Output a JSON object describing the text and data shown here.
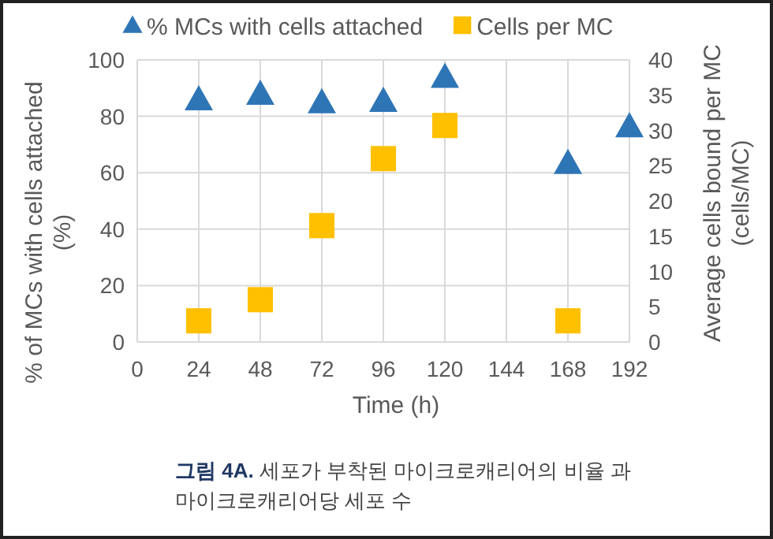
{
  "chart_data": {
    "type": "scatter",
    "xlabel": "Time (h)",
    "ylabel": "% of  MCs with cells attached (%)",
    "y2label": "Average cells bound per MC (cells/MC)",
    "xlim": [
      0,
      192
    ],
    "xticks": [
      0,
      24,
      48,
      72,
      96,
      120,
      144,
      168,
      192
    ],
    "ylim": [
      0,
      100
    ],
    "yticks": [
      0,
      20,
      40,
      60,
      80,
      100
    ],
    "y2lim": [
      0,
      40
    ],
    "y2ticks": [
      0,
      5,
      10,
      15,
      20,
      25,
      30,
      35,
      40
    ],
    "grid": true,
    "legend": "top",
    "series": [
      {
        "name": "% MCs with cells attached",
        "color": "#2e75b6",
        "marker": "triangle",
        "x": [
          24,
          48,
          72,
          96,
          120,
          168,
          192
        ],
        "values": [
          86,
          88,
          85,
          85.5,
          94,
          63.5,
          76.5
        ]
      },
      {
        "name": "Cells per MC",
        "color": "#ffc000",
        "marker": "square",
        "axis": "y2",
        "x": [
          24,
          48,
          72,
          96,
          120,
          168
        ],
        "values": [
          3,
          6,
          16.5,
          26,
          30.7,
          3
        ]
      }
    ],
    "annotations": [
      "그림 4A. 세포가 부착된 마이크로캐리어의 비율 과 마이크로캐리어당 세포 수"
    ]
  }
}
